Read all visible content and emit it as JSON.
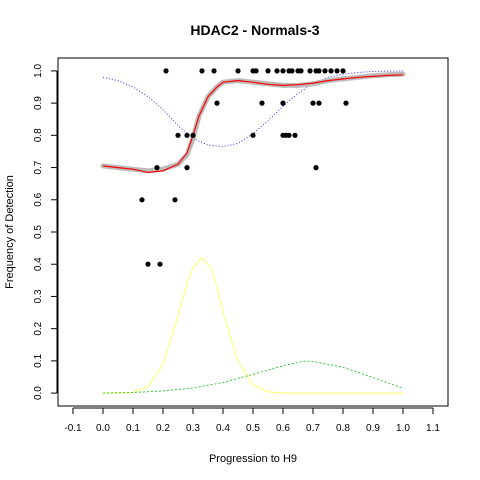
{
  "chart_data": {
    "type": "scatter",
    "title": "HDAC2 - Normals-3",
    "xlabel": "Progression to H9",
    "ylabel": "Frequency of Detection",
    "xlim": [
      -0.15,
      1.15
    ],
    "ylim": [
      -0.04,
      1.04
    ],
    "x_ticks": [
      -0.1,
      0.0,
      0.1,
      0.2,
      0.3,
      0.4,
      0.5,
      0.6,
      0.7,
      0.8,
      0.9,
      1.0,
      1.1
    ],
    "y_ticks": [
      0.0,
      0.1,
      0.2,
      0.3,
      0.4,
      0.5,
      0.6,
      0.7,
      0.8,
      0.9,
      1.0
    ],
    "grid": false,
    "legend": "none",
    "points": {
      "color": "#000000",
      "x": [
        0.21,
        0.33,
        0.37,
        0.45,
        0.5,
        0.51,
        0.55,
        0.58,
        0.6,
        0.62,
        0.63,
        0.65,
        0.66,
        0.69,
        0.71,
        0.72,
        0.74,
        0.76,
        0.78,
        0.8,
        0.38,
        0.53,
        0.6,
        0.7,
        0.72,
        0.81,
        0.28,
        0.3,
        0.25,
        0.5,
        0.6,
        0.61,
        0.62,
        0.64,
        0.28,
        0.71,
        0.18,
        0.13,
        0.24,
        0.15,
        0.19
      ],
      "y": [
        1.0,
        1.0,
        1.0,
        1.0,
        1.0,
        1.0,
        1.0,
        1.0,
        1.0,
        1.0,
        1.0,
        1.0,
        1.0,
        1.0,
        1.0,
        1.0,
        1.0,
        1.0,
        1.0,
        1.0,
        0.9,
        0.9,
        0.9,
        0.9,
        0.9,
        0.9,
        0.8,
        0.8,
        0.8,
        0.8,
        0.8,
        0.8,
        0.8,
        0.8,
        0.7,
        0.7,
        0.7,
        0.6,
        0.6,
        0.4,
        0.4
      ]
    },
    "smoothed_gray": {
      "color": "#bbbbbb",
      "x": [
        0.0,
        0.05,
        0.1,
        0.15,
        0.2,
        0.25,
        0.28,
        0.3,
        0.32,
        0.35,
        0.38,
        0.4,
        0.45,
        0.5,
        0.55,
        0.6,
        0.65,
        0.7,
        0.75,
        0.8,
        0.85,
        0.9,
        0.95,
        1.0
      ],
      "y": [
        0.705,
        0.7,
        0.695,
        0.69,
        0.695,
        0.71,
        0.74,
        0.79,
        0.86,
        0.92,
        0.95,
        0.965,
        0.97,
        0.965,
        0.96,
        0.955,
        0.955,
        0.96,
        0.97,
        0.975,
        0.98,
        0.985,
        0.988,
        0.99
      ]
    },
    "fit_red": {
      "color": "#ff0000",
      "x": [
        0.0,
        0.05,
        0.1,
        0.15,
        0.2,
        0.25,
        0.28,
        0.3,
        0.32,
        0.35,
        0.38,
        0.4,
        0.45,
        0.5,
        0.55,
        0.6,
        0.65,
        0.7,
        0.75,
        0.8,
        0.85,
        0.9,
        0.95,
        1.0
      ],
      "y": [
        0.705,
        0.7,
        0.695,
        0.685,
        0.69,
        0.71,
        0.745,
        0.8,
        0.86,
        0.92,
        0.95,
        0.965,
        0.97,
        0.965,
        0.958,
        0.955,
        0.957,
        0.962,
        0.97,
        0.975,
        0.98,
        0.983,
        0.986,
        0.988
      ]
    },
    "blue_dotted": {
      "color": "#3333ff",
      "x": [
        0.0,
        0.05,
        0.1,
        0.15,
        0.2,
        0.25,
        0.3,
        0.35,
        0.4,
        0.45,
        0.5,
        0.55,
        0.6,
        0.65,
        0.7,
        0.75,
        0.8,
        0.85,
        0.9,
        0.95,
        1.0
      ],
      "y": [
        0.98,
        0.97,
        0.95,
        0.92,
        0.88,
        0.83,
        0.79,
        0.77,
        0.765,
        0.775,
        0.805,
        0.845,
        0.89,
        0.93,
        0.96,
        0.98,
        0.99,
        0.995,
        0.998,
        0.999,
        1.0
      ]
    },
    "yellow_density": {
      "color": "#ffff66",
      "x": [
        0.0,
        0.1,
        0.15,
        0.2,
        0.25,
        0.28,
        0.3,
        0.33,
        0.36,
        0.38,
        0.4,
        0.45,
        0.5,
        0.55,
        0.6,
        0.7,
        0.8,
        0.9,
        1.0
      ],
      "y": [
        0.0,
        0.002,
        0.02,
        0.09,
        0.24,
        0.34,
        0.39,
        0.42,
        0.39,
        0.33,
        0.25,
        0.1,
        0.025,
        0.004,
        0.0,
        0.0,
        0.0,
        0.0,
        0.0
      ]
    },
    "green_density": {
      "color": "#33cc33",
      "x": [
        0.0,
        0.1,
        0.2,
        0.3,
        0.4,
        0.5,
        0.6,
        0.67,
        0.7,
        0.8,
        0.9,
        1.0
      ],
      "y": [
        0.0,
        0.002,
        0.007,
        0.016,
        0.033,
        0.058,
        0.085,
        0.099,
        0.098,
        0.08,
        0.048,
        0.015
      ]
    }
  }
}
